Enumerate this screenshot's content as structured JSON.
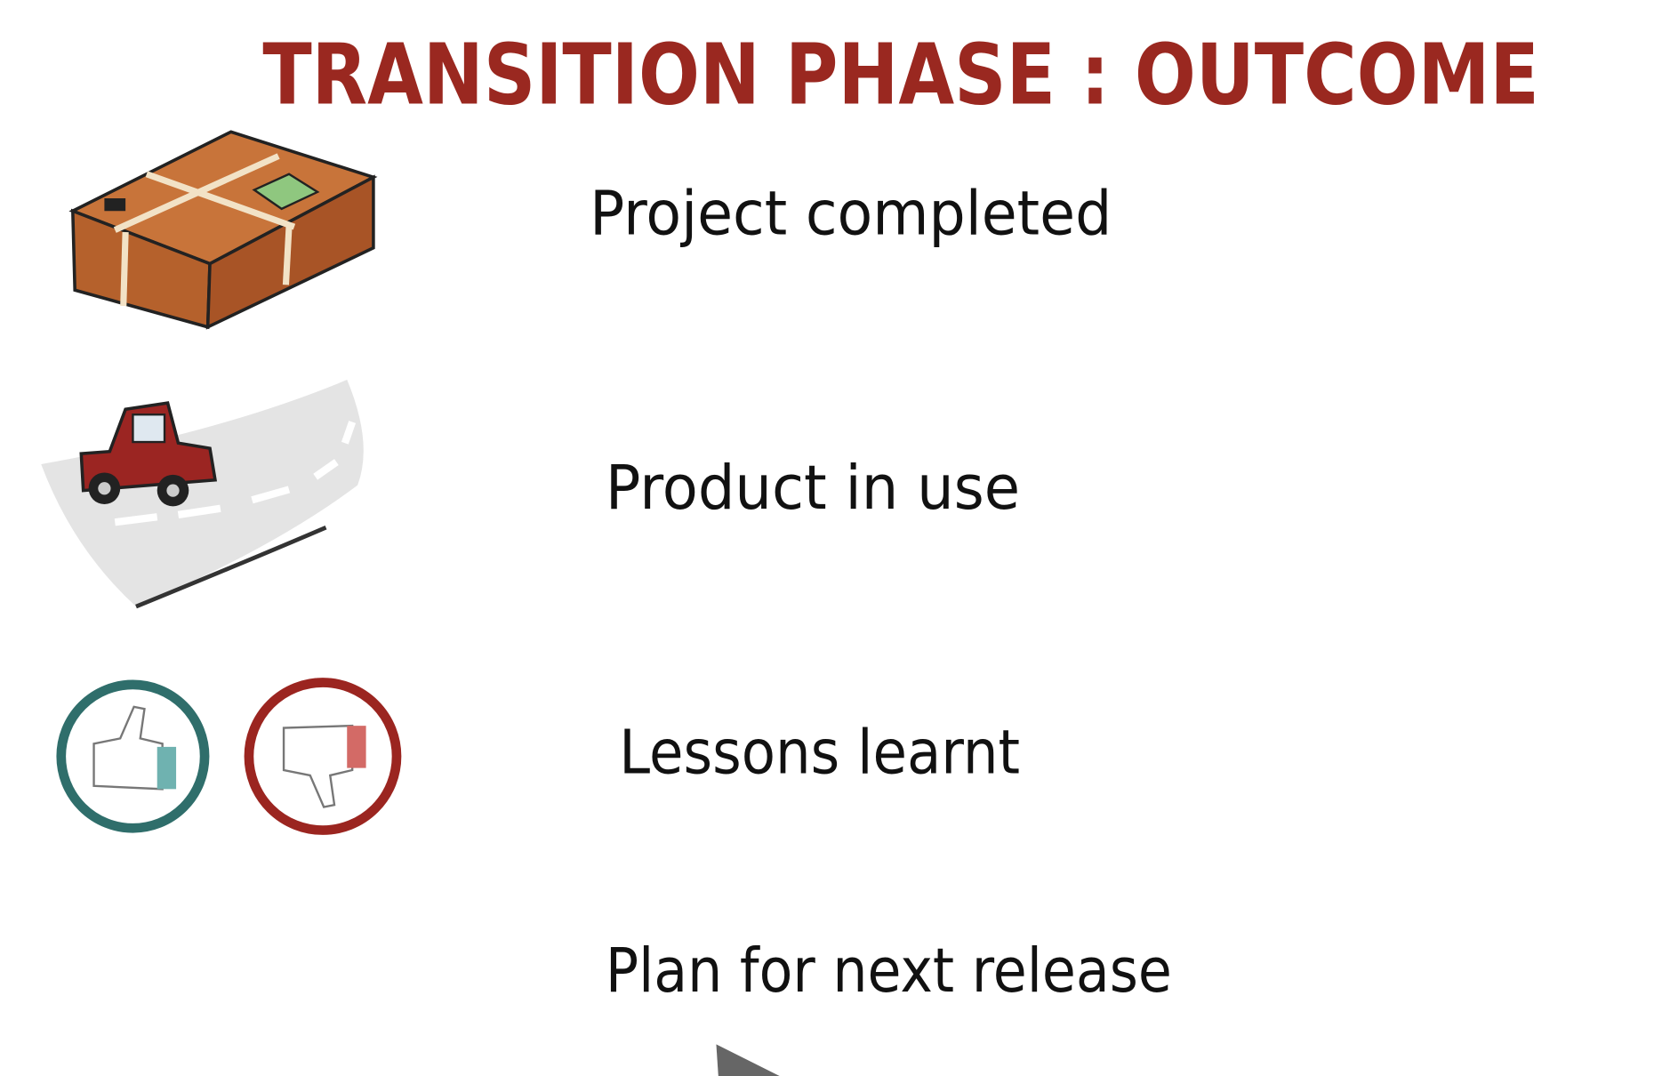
{
  "header": {
    "title": "TRANSITION PHASE : OUTCOME"
  },
  "items": [
    "Project completed",
    "Product in use",
    "Lessons learnt",
    "Plan for next release"
  ]
}
